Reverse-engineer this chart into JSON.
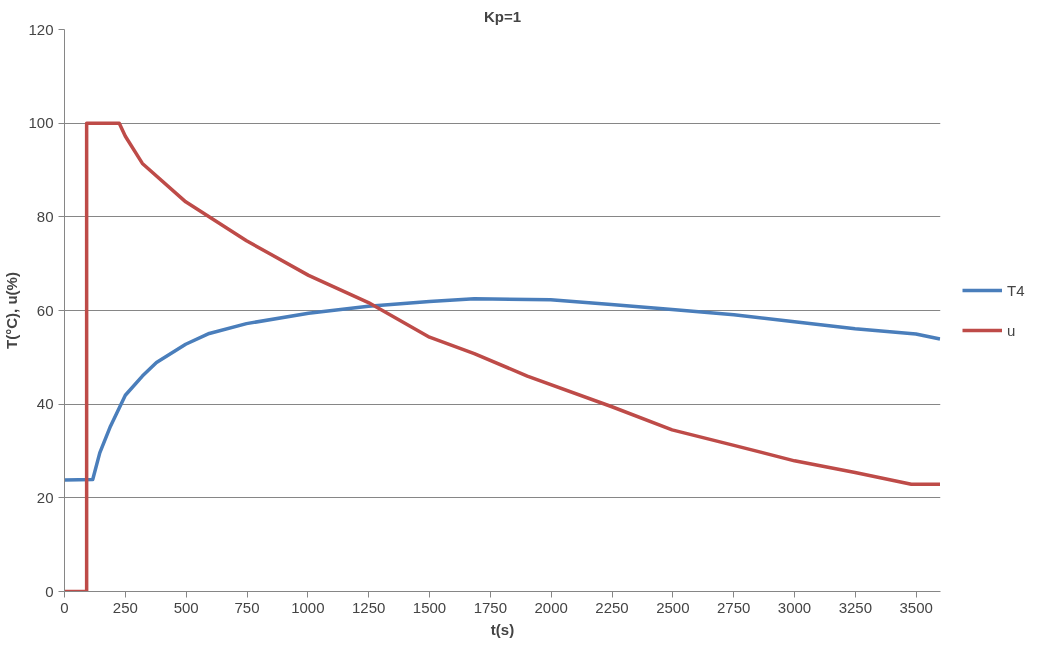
{
  "chart_data": {
    "type": "line",
    "title": "Kp=1",
    "xlabel": "t(s)",
    "ylabel": "T(°C), u(%)",
    "xlim": [
      0,
      3600
    ],
    "xticks": [
      0,
      250,
      500,
      750,
      1000,
      1250,
      1500,
      1750,
      2000,
      2250,
      2500,
      2750,
      3000,
      3250,
      3500
    ],
    "ylim": [
      0,
      120
    ],
    "yticks": [
      0,
      20,
      40,
      60,
      80,
      100,
      120
    ],
    "grid": "y",
    "legend": "right",
    "marker": "none",
    "line_style": "solid",
    "series": [
      {
        "name": "T4",
        "color": "#4a7ebb",
        "x": [
          0,
          116,
          145,
          189,
          250,
          320,
          378,
          498,
          595,
          748,
          1003,
          1249,
          1500,
          1684,
          1998,
          2247,
          2497,
          2751,
          3000,
          3249,
          3499,
          3598
        ],
        "values": [
          23.8,
          23.9,
          29.6,
          35.3,
          41.9,
          46.0,
          48.9,
          52.8,
          55.1,
          57.2,
          59.4,
          60.9,
          61.9,
          62.5,
          62.3,
          61.3,
          60.2,
          59.1,
          57.6,
          56.1,
          55.0,
          53.9
        ]
      },
      {
        "name": "u",
        "color": "#be4b48",
        "x": [
          0,
          91,
          91,
          225,
          250,
          320,
          498,
          748,
          1003,
          1249,
          1500,
          1684,
          1902,
          2247,
          2497,
          2751,
          3000,
          3249,
          3480,
          3598
        ],
        "values": [
          0,
          0,
          100,
          100,
          97.2,
          91.4,
          83.2,
          74.9,
          67.5,
          61.7,
          54.3,
          50.8,
          46.0,
          39.5,
          34.5,
          31.2,
          27.9,
          25.4,
          22.9,
          22.9
        ]
      }
    ]
  }
}
